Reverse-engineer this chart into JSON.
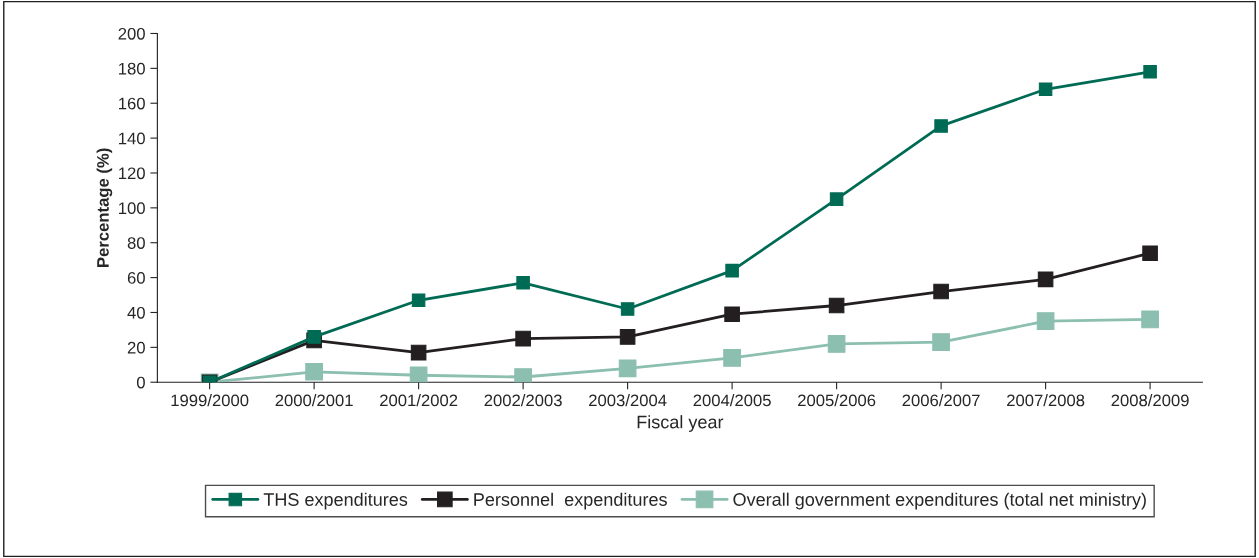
{
  "chart_data": {
    "type": "line",
    "xlabel": "Fiscal year",
    "ylabel": "Percentage (%)",
    "categories": [
      "1999/2000",
      "2000/2001",
      "2001/2002",
      "2002/2003",
      "2003/2004",
      "2004/2005",
      "2005/2006",
      "2006/2007",
      "2007/2008",
      "2008/2009"
    ],
    "series": [
      {
        "name": "THS expenditures",
        "color": "#006b54",
        "values": [
          0,
          26,
          47,
          57,
          42,
          64,
          105,
          147,
          168,
          178
        ]
      },
      {
        "name": "Personnel  expenditures",
        "color": "#231f20",
        "values": [
          0,
          24,
          17,
          25,
          26,
          39,
          44,
          52,
          59,
          74
        ]
      },
      {
        "name": "Overall government expenditures (total net ministry)",
        "color": "#8cbfb0",
        "values": [
          0,
          6,
          4,
          3,
          8,
          14,
          22,
          23,
          35,
          36
        ]
      }
    ],
    "ylim": [
      0,
      200
    ],
    "yticks": [
      0,
      20,
      40,
      60,
      80,
      100,
      120,
      140,
      160,
      180,
      200
    ],
    "grid": false,
    "legend": "bottom",
    "marker": "square",
    "line_style": "solid"
  }
}
